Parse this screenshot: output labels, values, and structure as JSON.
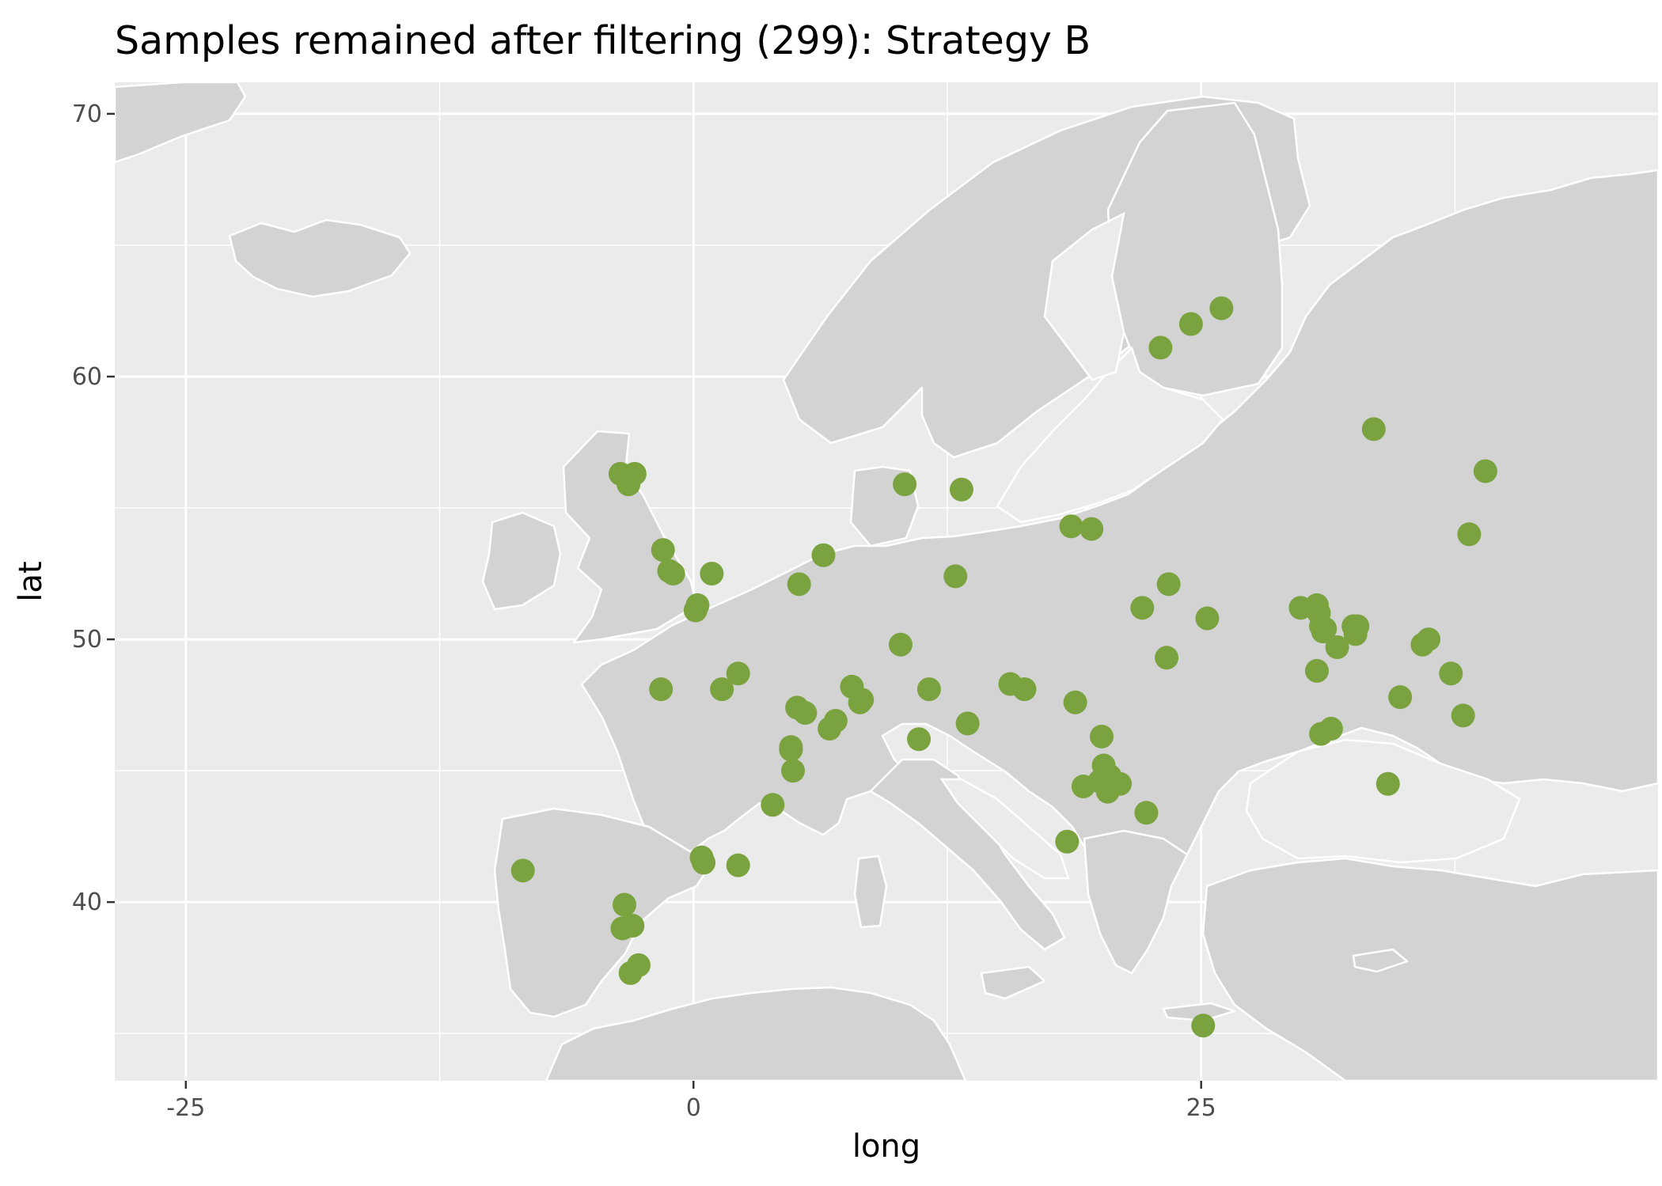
{
  "chart_data": {
    "type": "scatter",
    "title": "Samples remained after filtering (299): Strategy B",
    "xlabel": "long",
    "ylabel": "lat",
    "xlim": [
      -28.5,
      47.5
    ],
    "ylim": [
      33.2,
      71.2
    ],
    "x_ticks": [
      {
        "value": -25,
        "label": "-25"
      },
      {
        "value": 0,
        "label": "0"
      },
      {
        "value": 25,
        "label": "25"
      }
    ],
    "y_ticks": [
      {
        "value": 40,
        "label": "40"
      },
      {
        "value": 50,
        "label": "50"
      },
      {
        "value": 60,
        "label": "60"
      },
      {
        "value": 70,
        "label": "70"
      }
    ],
    "x_minor_gridlines": [
      -12.5,
      12.5,
      37.5
    ],
    "y_minor_gridlines": [
      35,
      45,
      55,
      65
    ],
    "grid": true,
    "basemap": "Europe country borders",
    "point_color": "#7aa33f",
    "panel_color": "#ebebeb",
    "land_color": "#d3d3d3",
    "points": [
      {
        "x": 23.0,
        "y": 61.1
      },
      {
        "x": 24.5,
        "y": 62.0
      },
      {
        "x": 26.0,
        "y": 62.6
      },
      {
        "x": 33.5,
        "y": 58.0
      },
      {
        "x": 39.0,
        "y": 56.4
      },
      {
        "x": 38.2,
        "y": 54.0
      },
      {
        "x": 18.6,
        "y": 54.3
      },
      {
        "x": 19.6,
        "y": 54.2
      },
      {
        "x": 10.4,
        "y": 55.9
      },
      {
        "x": 13.2,
        "y": 55.7
      },
      {
        "x": -3.6,
        "y": 56.3
      },
      {
        "x": -2.9,
        "y": 56.3
      },
      {
        "x": -3.2,
        "y": 55.9
      },
      {
        "x": -1.5,
        "y": 53.4
      },
      {
        "x": -1.0,
        "y": 52.5
      },
      {
        "x": -1.2,
        "y": 52.6
      },
      {
        "x": 0.9,
        "y": 52.5
      },
      {
        "x": 0.2,
        "y": 51.3
      },
      {
        "x": 0.1,
        "y": 51.1
      },
      {
        "x": 5.2,
        "y": 52.1
      },
      {
        "x": 6.4,
        "y": 53.2
      },
      {
        "x": 12.9,
        "y": 52.4
      },
      {
        "x": 22.1,
        "y": 51.2
      },
      {
        "x": 23.4,
        "y": 52.1
      },
      {
        "x": 25.3,
        "y": 50.8
      },
      {
        "x": 23.3,
        "y": 49.3
      },
      {
        "x": 29.9,
        "y": 51.2
      },
      {
        "x": 30.7,
        "y": 51.3
      },
      {
        "x": 30.8,
        "y": 51.0
      },
      {
        "x": 30.9,
        "y": 50.5
      },
      {
        "x": 31.0,
        "y": 50.3
      },
      {
        "x": 31.1,
        "y": 50.4
      },
      {
        "x": 31.7,
        "y": 49.7
      },
      {
        "x": 32.5,
        "y": 50.5
      },
      {
        "x": 32.7,
        "y": 50.5
      },
      {
        "x": 32.6,
        "y": 50.2
      },
      {
        "x": 30.7,
        "y": 48.8
      },
      {
        "x": 35.9,
        "y": 49.8
      },
      {
        "x": 36.2,
        "y": 50.0
      },
      {
        "x": 37.3,
        "y": 48.7
      },
      {
        "x": 34.8,
        "y": 47.8
      },
      {
        "x": 37.9,
        "y": 47.1
      },
      {
        "x": 30.9,
        "y": 46.4
      },
      {
        "x": 31.4,
        "y": 46.6
      },
      {
        "x": 34.2,
        "y": 44.5
      },
      {
        "x": -1.6,
        "y": 48.1
      },
      {
        "x": 1.4,
        "y": 48.1
      },
      {
        "x": 2.2,
        "y": 48.7
      },
      {
        "x": 5.1,
        "y": 47.4
      },
      {
        "x": 5.5,
        "y": 47.2
      },
      {
        "x": 4.8,
        "y": 45.8
      },
      {
        "x": 4.8,
        "y": 45.9
      },
      {
        "x": 4.9,
        "y": 45.0
      },
      {
        "x": 6.7,
        "y": 46.6
      },
      {
        "x": 7.0,
        "y": 46.9
      },
      {
        "x": 7.8,
        "y": 48.2
      },
      {
        "x": 8.2,
        "y": 47.6
      },
      {
        "x": 8.3,
        "y": 47.7
      },
      {
        "x": 10.2,
        "y": 49.8
      },
      {
        "x": 11.6,
        "y": 48.1
      },
      {
        "x": 11.1,
        "y": 46.2
      },
      {
        "x": 13.5,
        "y": 46.8
      },
      {
        "x": 15.6,
        "y": 48.3
      },
      {
        "x": 16.3,
        "y": 48.1
      },
      {
        "x": 18.8,
        "y": 47.6
      },
      {
        "x": 20.1,
        "y": 46.3
      },
      {
        "x": 19.2,
        "y": 44.4
      },
      {
        "x": 20.2,
        "y": 45.2
      },
      {
        "x": 20.0,
        "y": 44.6
      },
      {
        "x": 20.5,
        "y": 44.8
      },
      {
        "x": 20.4,
        "y": 44.2
      },
      {
        "x": 21.0,
        "y": 44.5
      },
      {
        "x": 22.3,
        "y": 43.4
      },
      {
        "x": 18.4,
        "y": 42.3
      },
      {
        "x": 3.9,
        "y": 43.7
      },
      {
        "x": 0.4,
        "y": 41.7
      },
      {
        "x": 0.5,
        "y": 41.5
      },
      {
        "x": 2.2,
        "y": 41.4
      },
      {
        "x": -8.4,
        "y": 41.2
      },
      {
        "x": -3.4,
        "y": 39.9
      },
      {
        "x": -3.5,
        "y": 39.0
      },
      {
        "x": -3.0,
        "y": 39.1
      },
      {
        "x": -3.1,
        "y": 37.3
      },
      {
        "x": -2.7,
        "y": 37.6
      },
      {
        "x": 25.1,
        "y": 35.3
      }
    ]
  }
}
